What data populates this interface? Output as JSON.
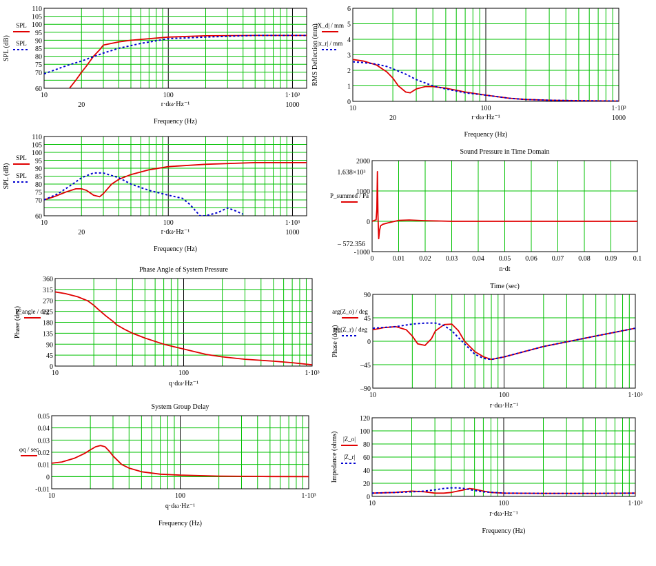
{
  "colors": {
    "grid": "#00c000",
    "red": "#e00000",
    "blue": "#0000d0",
    "frame": "#000000",
    "marker": "#000000"
  },
  "chart_data": [
    {
      "id": "spl1",
      "type": "line",
      "xscale": "log",
      "xlim": [
        10,
        1300
      ],
      "ylim": [
        60,
        110
      ],
      "yticks": [
        60,
        65,
        70,
        75,
        80,
        85,
        90,
        95,
        100,
        105,
        110
      ],
      "yticklabels": [
        "60",
        "",
        "70",
        "75",
        "80",
        "85",
        "90",
        "95",
        "100",
        "105",
        "110"
      ],
      "xticks_top": [
        "10",
        "100",
        "1·10³"
      ],
      "xticks_bottom": [
        "20",
        "1000"
      ],
      "xvar": "r·dω·Hz⁻¹",
      "xlabel": "Frequency (Hz)",
      "ylabel": "SPL (dB)",
      "legend": [
        "SPL",
        "SPL"
      ],
      "series": [
        {
          "color": "red",
          "style": "solid",
          "x": [
            16,
            18,
            20,
            22,
            25,
            28,
            30,
            40,
            50,
            70,
            100,
            200,
            500,
            1300
          ],
          "y": [
            60,
            65,
            70,
            74,
            80,
            84,
            87,
            89,
            90,
            91,
            92,
            92.8,
            93,
            93
          ]
        },
        {
          "color": "blue",
          "style": "dashed",
          "x": [
            10,
            15,
            20,
            30,
            40,
            60,
            100,
            200,
            300,
            500,
            1300
          ],
          "y": [
            69,
            74,
            77,
            82,
            85,
            88,
            91,
            92,
            92.5,
            93,
            93
          ]
        }
      ]
    },
    {
      "id": "spl2",
      "type": "line",
      "xscale": "log",
      "xlim": [
        10,
        1300
      ],
      "ylim": [
        60,
        110
      ],
      "yticks": [
        60,
        65,
        70,
        75,
        80,
        85,
        90,
        95,
        100,
        105,
        110
      ],
      "yticklabels": [
        "60",
        "",
        "70",
        "75",
        "80",
        "85",
        "90",
        "95",
        "100",
        "105",
        "110"
      ],
      "xticks_top": [
        "10",
        "100",
        "1·10³"
      ],
      "xticks_bottom": [
        "20",
        "1000"
      ],
      "xvar": "r·dω·Hz⁻¹",
      "xlabel": "Frequency (Hz)",
      "ylabel": "SPL (dB)",
      "legend": [
        "SPL",
        "SPL"
      ],
      "series": [
        {
          "color": "red",
          "style": "solid",
          "x": [
            10,
            12,
            15,
            18,
            20,
            22,
            25,
            28,
            30,
            35,
            40,
            50,
            70,
            100,
            200,
            500,
            1300
          ],
          "y": [
            70,
            72,
            75,
            77,
            77,
            76,
            73,
            72,
            74,
            80,
            83,
            86,
            89,
            91,
            92.5,
            93.5,
            93.5
          ]
        },
        {
          "color": "blue",
          "style": "dashed",
          "x": [
            10,
            13,
            17,
            20,
            25,
            30,
            40,
            50,
            70,
            100,
            130,
            150,
            180,
            200,
            250,
            300,
            350,
            400
          ],
          "y": [
            70,
            74,
            80,
            84,
            87,
            87,
            84,
            80,
            76,
            73,
            71,
            67,
            60,
            60,
            62,
            65,
            63,
            61
          ]
        }
      ]
    },
    {
      "id": "phase",
      "type": "line",
      "xscale": "log",
      "title": "Phase Angle of System Pressure",
      "xlim": [
        10,
        1000
      ],
      "ylim": [
        0,
        360
      ],
      "yticks": [
        0,
        45,
        90,
        135,
        180,
        225,
        270,
        315,
        360
      ],
      "yticklabels": [
        "0",
        "45",
        "90",
        "135",
        "180",
        "225",
        "270",
        "315",
        "360"
      ],
      "xticks_top": [
        "10",
        "100",
        "1·10³"
      ],
      "xticks_bottom": [],
      "xvar": "q·dω·Hz⁻¹",
      "xlabel": "",
      "ylabel": "Phase (deg)",
      "legend": [
        "P_angle / deg"
      ],
      "series": [
        {
          "color": "red",
          "style": "solid",
          "x": [
            10,
            12,
            15,
            18,
            20,
            22,
            25,
            28,
            30,
            35,
            40,
            50,
            70,
            100,
            150,
            200,
            300,
            500,
            700,
            1000
          ],
          "y": [
            305,
            298,
            285,
            268,
            250,
            230,
            205,
            185,
            170,
            150,
            135,
            115,
            90,
            70,
            48,
            38,
            28,
            20,
            14,
            5
          ]
        }
      ]
    },
    {
      "id": "delay",
      "type": "line",
      "xscale": "log",
      "title": "System Group Delay",
      "xlim": [
        10,
        1000
      ],
      "ylim": [
        -0.01,
        0.05
      ],
      "yticks": [
        -0.01,
        0,
        0.01,
        0.02,
        0.03,
        0.04,
        0.05
      ],
      "yticklabels": [
        "-0.01",
        "0",
        "0.01",
        "0.02",
        "0.03",
        "0.04",
        "0.05"
      ],
      "xticks_top": [
        "10",
        "100",
        "1·10³"
      ],
      "xticks_bottom": [],
      "xvar": "q·dω·Hz⁻¹",
      "xlabel": "Frequency (Hz)",
      "ylabel": "",
      "legend": [
        "φq / sec"
      ],
      "series": [
        {
          "color": "red",
          "style": "solid",
          "x": [
            10,
            12,
            15,
            18,
            20,
            22,
            24,
            26,
            28,
            30,
            35,
            40,
            50,
            70,
            100,
            200,
            500,
            1000
          ],
          "y": [
            0.011,
            0.012,
            0.015,
            0.019,
            0.022,
            0.0245,
            0.0255,
            0.0245,
            0.021,
            0.017,
            0.01,
            0.007,
            0.004,
            0.002,
            0.0012,
            0.0004,
            0.0001,
            0
          ]
        }
      ]
    },
    {
      "id": "defl",
      "type": "line",
      "xscale": "log",
      "xlim": [
        10,
        1000
      ],
      "ylim": [
        0,
        6
      ],
      "yticks": [
        0,
        1,
        2,
        3,
        4,
        5,
        6
      ],
      "yticklabels": [
        "0",
        "1",
        "2",
        "3",
        "4",
        "5",
        "6"
      ],
      "xticks_top": [
        "10",
        "100",
        "1·10³"
      ],
      "xticks_bottom": [
        "20",
        "1000"
      ],
      "xvar": "r·dω·Hz⁻¹",
      "xlabel": "Frequency (Hz)",
      "ylabel": "RMS Deflection (mm)",
      "legend": [
        "|X_d| / mm",
        "|x_r| / mm"
      ],
      "series": [
        {
          "color": "red",
          "style": "solid",
          "x": [
            10,
            12,
            15,
            18,
            20,
            22,
            25,
            27,
            30,
            35,
            40,
            50,
            70,
            100,
            150,
            200,
            300,
            500,
            1000
          ],
          "y": [
            2.7,
            2.6,
            2.35,
            1.9,
            1.5,
            1.0,
            0.6,
            0.55,
            0.8,
            0.95,
            0.95,
            0.85,
            0.6,
            0.4,
            0.2,
            0.12,
            0.07,
            0.04,
            0.02
          ]
        },
        {
          "color": "blue",
          "style": "dashed",
          "x": [
            10,
            12,
            15,
            18,
            20,
            25,
            30,
            40,
            50,
            70,
            100,
            150,
            200,
            300,
            500,
            1000
          ],
          "y": [
            2.55,
            2.5,
            2.4,
            2.25,
            2.1,
            1.75,
            1.4,
            1.0,
            0.8,
            0.55,
            0.4,
            0.2,
            0.12,
            0.07,
            0.04,
            0.02
          ]
        }
      ]
    },
    {
      "id": "time",
      "type": "line",
      "xscale": "linear",
      "title": "Sound Pressure in Time Domain",
      "xlim": [
        0,
        0.1
      ],
      "ylim": [
        -1000,
        2000
      ],
      "yticks": [
        -1000,
        0,
        1000,
        2000
      ],
      "yticklabels": [
        "-1000",
        "0",
        "1000",
        "2000"
      ],
      "xticks_top": [
        "0",
        "0.01",
        "0.02",
        "0.03",
        "0.04",
        "0.05",
        "0.06",
        "0.07",
        "0.08",
        "0.09",
        "0.1"
      ],
      "xticks_bottom": [],
      "xvar": "n·dt",
      "xlabel": "Time (sec)",
      "ylabel": "",
      "ymax_label": "1.638×10³",
      "ymin_label": "– 572.356",
      "legend": [
        "P_summed / Pa"
      ],
      "series": [
        {
          "color": "red",
          "style": "solid",
          "x": [
            0,
            0.0015,
            0.0018,
            0.002,
            0.0022,
            0.0025,
            0.0028,
            0.0032,
            0.004,
            0.006,
            0.01,
            0.014,
            0.02,
            0.03,
            0.1
          ],
          "y": [
            0,
            50,
            400,
            1638,
            200,
            -572,
            -300,
            -150,
            -100,
            -50,
            30,
            40,
            20,
            0,
            0
          ]
        }
      ]
    },
    {
      "id": "imphase",
      "type": "line",
      "xscale": "log",
      "xlim": [
        10,
        1000
      ],
      "ylim": [
        -90,
        90
      ],
      "yticks": [
        -90,
        -45,
        0,
        45,
        90
      ],
      "yticklabels": [
        "–90",
        "–45",
        "0",
        "45",
        "90"
      ],
      "xticks_top": [
        "10",
        "100",
        "1·10³"
      ],
      "xticks_bottom": [],
      "xvar": "r·dω·Hz⁻¹",
      "xlabel": "",
      "ylabel": "Phase (deg)",
      "legend": [
        "arg(Z_o) / deg",
        "arg(Z_r) / deg"
      ],
      "series": [
        {
          "color": "red",
          "style": "solid",
          "x": [
            10,
            12,
            15,
            18,
            20,
            22,
            25,
            28,
            30,
            35,
            40,
            45,
            50,
            60,
            70,
            80,
            100,
            200,
            500,
            1000
          ],
          "y": [
            22,
            26,
            28,
            22,
            10,
            -5,
            -8,
            5,
            20,
            32,
            33,
            20,
            0,
            -20,
            -30,
            -35,
            -30,
            -10,
            10,
            25
          ]
        },
        {
          "color": "blue",
          "style": "dashed",
          "x": [
            10,
            15,
            20,
            25,
            30,
            35,
            40,
            50,
            60,
            70,
            80,
            100,
            200,
            500,
            1000
          ],
          "y": [
            25,
            28,
            33,
            35,
            35,
            30,
            20,
            -5,
            -25,
            -33,
            -35,
            -30,
            -10,
            10,
            25
          ]
        }
      ]
    },
    {
      "id": "imped",
      "type": "line",
      "xscale": "log",
      "xlim": [
        10,
        1000
      ],
      "ylim": [
        0,
        120
      ],
      "yticks": [
        0,
        20,
        40,
        60,
        80,
        100,
        120
      ],
      "yticklabels": [
        "0",
        "20",
        "40",
        "60",
        "80",
        "100",
        "120"
      ],
      "xticks_top": [
        "10",
        "100",
        "1·10³"
      ],
      "xticks_bottom": [],
      "xvar": "r·dω·Hz⁻¹",
      "xlabel": "Frequency (Hz)",
      "ylabel": "Impedance (ohms)",
      "legend": [
        "|Z_o|",
        "|Z_r|"
      ],
      "series": [
        {
          "color": "red",
          "style": "solid",
          "x": [
            10,
            15,
            20,
            25,
            30,
            35,
            40,
            50,
            55,
            60,
            70,
            80,
            100,
            200,
            500,
            1000
          ],
          "y": [
            5,
            6,
            8,
            7,
            5,
            5,
            6,
            10,
            12,
            11,
            8,
            6,
            5,
            4.5,
            4.5,
            5
          ]
        },
        {
          "color": "blue",
          "style": "dashed",
          "x": [
            10,
            15,
            20,
            25,
            30,
            35,
            40,
            45,
            50,
            60,
            70,
            100,
            200,
            500,
            1000
          ],
          "y": [
            5,
            6,
            7,
            8,
            10,
            12,
            13,
            13,
            12,
            9,
            7,
            5,
            4.5,
            4.5,
            5
          ]
        }
      ]
    }
  ]
}
